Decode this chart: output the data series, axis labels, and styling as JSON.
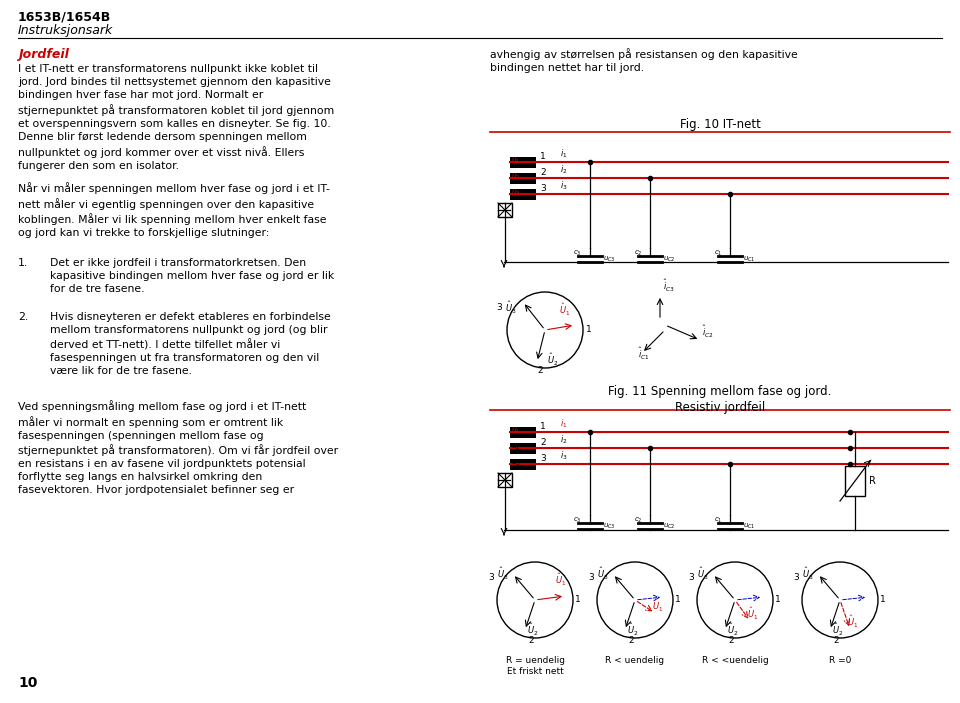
{
  "title_bold": "1653B/1654B",
  "title_italic": "Instruksjonsark",
  "red_section_title": "Jordfeil",
  "fig10_title": "Fig. 10 IT-nett",
  "fig11_title": "Fig. 11 Spenning mellom fase og jord.\nResistiv jordfeil",
  "page_number": "10",
  "background_color": "#ffffff",
  "text_color": "#000000",
  "red_color": "#cc0000",
  "blue_color": "#0000cc",
  "gray_color": "#888888"
}
